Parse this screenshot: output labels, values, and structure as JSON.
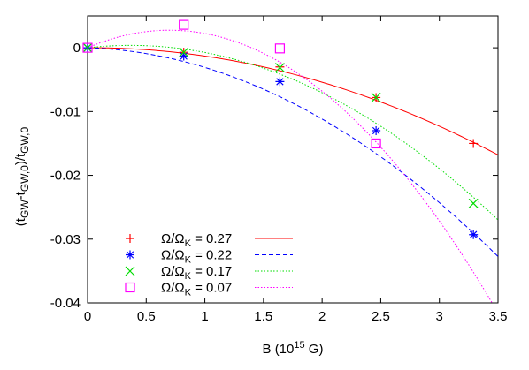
{
  "chart_data": {
    "type": "scatter",
    "xlabel": "B (10^15 G)",
    "ylabel": "(t_GW - t_GW,0)/t_GW,0",
    "xlim": [
      0,
      3.5
    ],
    "ylim": [
      -0.04,
      0.005
    ],
    "x_ticks": [
      "0",
      "0.5",
      "1",
      "1.5",
      "2",
      "2.5",
      "3",
      "3.5"
    ],
    "y_ticks": [
      "0",
      "-0.01",
      "-0.02",
      "-0.03",
      "-0.04"
    ],
    "grid": false,
    "legend_position": "bottom-left",
    "series": [
      {
        "name": "Ω/ΩK = 0.27",
        "name_main": "Ω/Ω",
        "name_sub": "K",
        "name_value": " = 0.27",
        "marker": "plus",
        "color": "#ff0000",
        "line_style": "solid",
        "points": [
          [
            0,
            0
          ],
          [
            0.82,
            -0.0007
          ],
          [
            1.64,
            -0.003
          ],
          [
            2.46,
            -0.0078
          ],
          [
            3.29,
            -0.015
          ]
        ],
        "fit": [
          0,
          0.0001,
          -0.0014
        ]
      },
      {
        "name": "Ω/ΩK = 0.22",
        "name_main": "Ω/Ω",
        "name_sub": "K",
        "name_value": " = 0.22",
        "marker": "asterisk",
        "color": "#0000ff",
        "line_style": "dashed",
        "points": [
          [
            0,
            0
          ],
          [
            0.82,
            -0.0013
          ],
          [
            1.64,
            -0.0053
          ],
          [
            2.46,
            -0.013
          ],
          [
            3.29,
            -0.0293
          ]
        ],
        "fit": [
          0,
          -0.000566,
          -0.00251
        ]
      },
      {
        "name": "Ω/ΩK = 0.17",
        "name_main": "Ω/Ω",
        "name_sub": "K",
        "name_value": " = 0.17",
        "marker": "cross",
        "color": "#00dd00",
        "line_style": "dotted",
        "points": [
          [
            0,
            0
          ],
          [
            0.82,
            -0.0007
          ],
          [
            1.64,
            -0.0031
          ],
          [
            2.46,
            -0.0078
          ],
          [
            3.29,
            -0.0244
          ]
        ],
        "fit": [
          0,
          0.002057,
          -0.002791
        ]
      },
      {
        "name": "Ω/ΩK = 0.07",
        "name_main": "Ω/Ω",
        "name_sub": "K",
        "name_value": " = 0.07",
        "marker": "square",
        "color": "#ff00ff",
        "line_style": "dotted",
        "points": [
          [
            0,
            0
          ],
          [
            0.82,
            0.0036
          ],
          [
            1.64,
            -0.0001
          ],
          [
            2.46,
            -0.015
          ]
        ],
        "fit": [
          0,
          0.007891,
          -0.005649
        ]
      }
    ]
  }
}
